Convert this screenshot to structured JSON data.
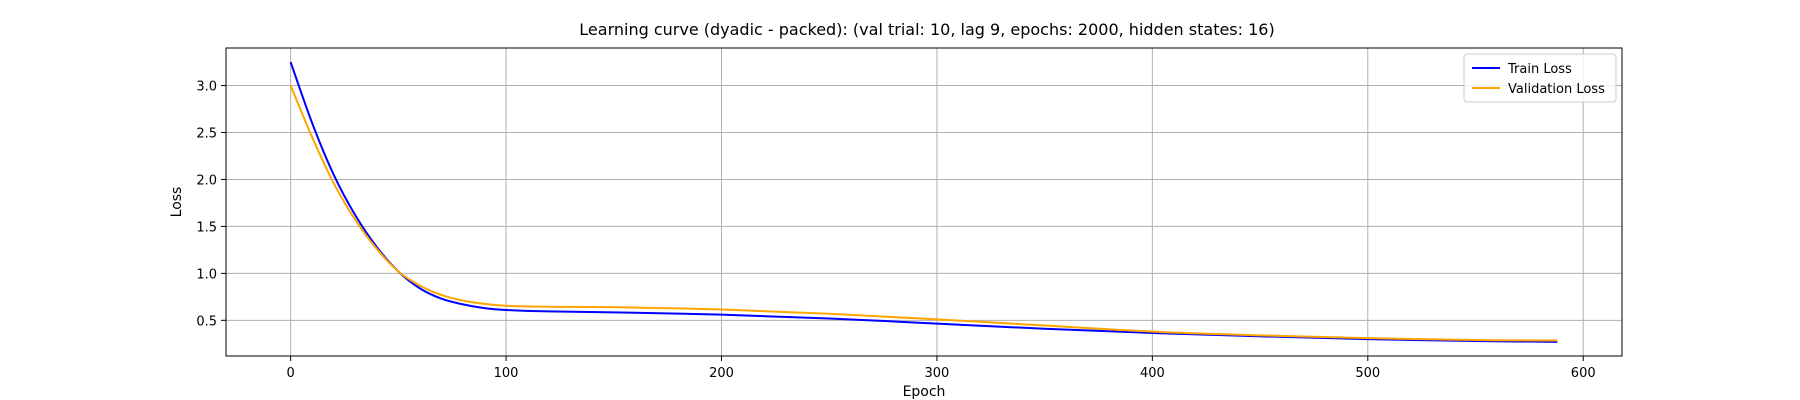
{
  "chart_data": {
    "type": "line",
    "title": "Learning curve (dyadic - packed): (val trial: 10, lag 9, epochs: 2000, hidden states: 16)",
    "xlabel": "Epoch",
    "ylabel": "Loss",
    "xlim": [
      -30,
      618
    ],
    "ylim": [
      0.12,
      3.4
    ],
    "xticks": [
      0,
      100,
      200,
      300,
      400,
      500,
      600
    ],
    "yticks": [
      0.5,
      1.0,
      1.5,
      2.0,
      2.5,
      3.0
    ],
    "xtick_labels": [
      "0",
      "100",
      "200",
      "300",
      "400",
      "500",
      "600"
    ],
    "ytick_labels": [
      "0.5",
      "1.0",
      "1.5",
      "2.0",
      "2.5",
      "3.0"
    ],
    "grid": true,
    "legend_position": "top-right",
    "series": [
      {
        "name": "Train Loss",
        "color": "#0000ff",
        "x": [
          0,
          10,
          20,
          30,
          40,
          50,
          60,
          70,
          80,
          90,
          100,
          120,
          150,
          200,
          250,
          300,
          350,
          400,
          450,
          500,
          550,
          588
        ],
        "y": [
          3.25,
          2.6,
          2.05,
          1.62,
          1.28,
          1.02,
          0.84,
          0.73,
          0.67,
          0.63,
          0.61,
          0.595,
          0.585,
          0.56,
          0.52,
          0.465,
          0.41,
          0.365,
          0.33,
          0.3,
          0.28,
          0.27
        ]
      },
      {
        "name": "Validation Loss",
        "color": "#ffa500",
        "x": [
          0,
          10,
          20,
          30,
          40,
          50,
          60,
          70,
          80,
          90,
          100,
          120,
          150,
          200,
          250,
          300,
          350,
          400,
          450,
          500,
          550,
          588
        ],
        "y": [
          3.0,
          2.45,
          1.96,
          1.57,
          1.26,
          1.02,
          0.87,
          0.77,
          0.71,
          0.675,
          0.655,
          0.645,
          0.64,
          0.615,
          0.57,
          0.51,
          0.445,
          0.38,
          0.34,
          0.31,
          0.29,
          0.285
        ]
      }
    ]
  }
}
